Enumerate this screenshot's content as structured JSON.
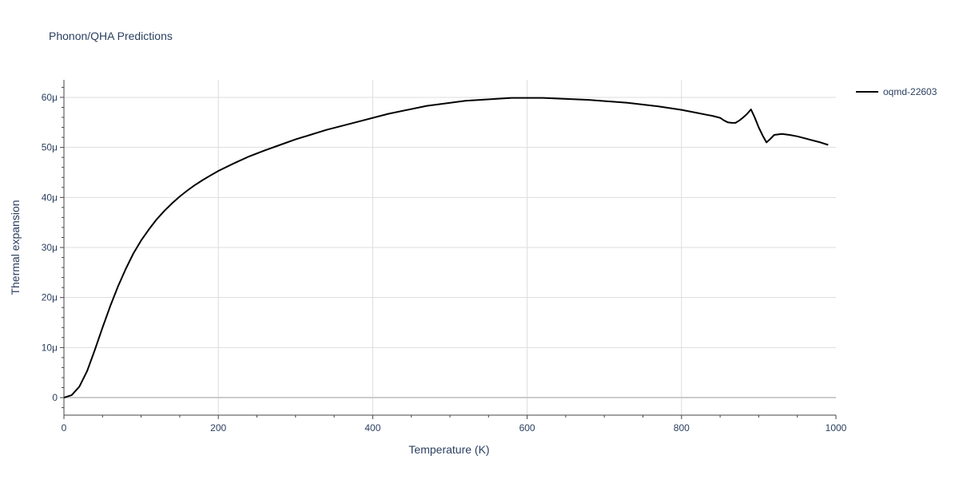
{
  "chart_data": {
    "type": "line",
    "title": "Phonon/QHA Predictions",
    "xlabel": "Temperature (K)",
    "ylabel": "Thermal expansion",
    "xlim": [
      0,
      1000
    ],
    "ylim": [
      -3.5e-06,
      6.35e-05
    ],
    "x_ticks": [
      0,
      200,
      400,
      600,
      800,
      1000
    ],
    "x_tick_labels": [
      "0",
      "200",
      "400",
      "600",
      "800",
      "1000"
    ],
    "y_ticks": [
      0,
      1e-05,
      2e-05,
      3e-05,
      4e-05,
      5e-05,
      6e-05
    ],
    "y_tick_labels": [
      "0",
      "10μ",
      "20μ",
      "30μ",
      "40μ",
      "50μ",
      "60μ"
    ],
    "grid": true,
    "legend_position": "top-right",
    "series": [
      {
        "name": "oqmd-22603",
        "color": "#000000",
        "x": [
          0,
          10,
          20,
          30,
          40,
          50,
          60,
          70,
          80,
          90,
          100,
          110,
          120,
          130,
          140,
          150,
          160,
          170,
          180,
          190,
          200,
          220,
          240,
          260,
          280,
          300,
          340,
          380,
          420,
          470,
          520,
          580,
          620,
          680,
          730,
          770,
          800,
          810,
          820,
          830,
          840,
          845,
          850,
          855,
          860,
          865,
          870,
          875,
          880,
          885,
          890,
          895,
          900,
          905,
          910,
          915,
          920,
          930,
          940,
          950,
          960,
          970,
          980,
          990
        ],
        "y": [
          0,
          5e-07,
          2.2e-06,
          5.3e-06,
          9.5e-06,
          1.4e-05,
          1.83e-05,
          2.22e-05,
          2.57e-05,
          2.88e-05,
          3.14e-05,
          3.36e-05,
          3.56e-05,
          3.73e-05,
          3.88e-05,
          4.02e-05,
          4.14e-05,
          4.25e-05,
          4.35e-05,
          4.44e-05,
          4.53e-05,
          4.68e-05,
          4.82e-05,
          4.94e-05,
          5.05e-05,
          5.16e-05,
          5.35e-05,
          5.51e-05,
          5.67e-05,
          5.83e-05,
          5.93e-05,
          5.99e-05,
          5.99e-05,
          5.95e-05,
          5.89e-05,
          5.82e-05,
          5.75e-05,
          5.72e-05,
          5.69e-05,
          5.66e-05,
          5.63e-05,
          5.61e-05,
          5.59e-05,
          5.54e-05,
          5.5e-05,
          5.49e-05,
          5.49e-05,
          5.54e-05,
          5.6e-05,
          5.67e-05,
          5.76e-05,
          5.59e-05,
          5.4e-05,
          5.24e-05,
          5.1e-05,
          5.17e-05,
          5.25e-05,
          5.27e-05,
          5.25e-05,
          5.22e-05,
          5.18e-05,
          5.14e-05,
          5.1e-05,
          5.05e-05
        ]
      }
    ]
  },
  "colors": {
    "text": "#2a3f5f",
    "grid": "#dddddd",
    "zero_line": "#cccccc",
    "axis_line": "#444444"
  }
}
